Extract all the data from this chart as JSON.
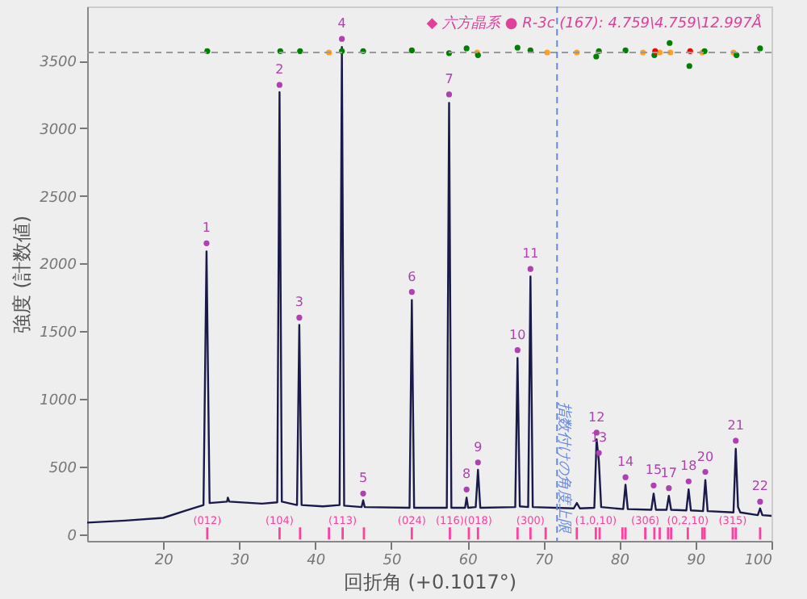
{
  "chart_data": {
    "type": "line",
    "xlabel": "回折角 (+0.1017°)",
    "ylabel": "強度 (計数値)",
    "xlim": [
      10,
      100
    ],
    "xticks": [
      20,
      30,
      40,
      50,
      60,
      70,
      80,
      90,
      100
    ],
    "ylim": [
      -50,
      3900
    ],
    "yticks": [
      0,
      500,
      1000,
      1500,
      2000,
      2500,
      3000,
      3500
    ],
    "grid": false,
    "series": [
      {
        "color": "#1a1a4a",
        "x": [
          10,
          15,
          20,
          23,
          25.3,
          25.7,
          26.1,
          28.4,
          28.5,
          28.7,
          33,
          35.0,
          35.3,
          35.6,
          37.6,
          37.9,
          38.2,
          41,
          43.2,
          43.5,
          43.8,
          46.1,
          46.3,
          46.5,
          52.4,
          52.7,
          53.0,
          57.3,
          57.6,
          57.9,
          59.7,
          59.9,
          60.1,
          61.1,
          61.4,
          61.7,
          66.3,
          66.6,
          66.9,
          68.0,
          68.3,
          68.6,
          74,
          74.4,
          74.8,
          76.7,
          77.0,
          77.3,
          77.6,
          80.5,
          80.8,
          81.1,
          84.2,
          84.5,
          84.8,
          86.2,
          86.5,
          86.8,
          88.8,
          89.1,
          89.4,
          91.0,
          91.3,
          91.6,
          95.0,
          95.3,
          95.6,
          95.9,
          98.2,
          98.5,
          98.8,
          100
        ],
        "values": [
          85,
          100,
          120,
          175,
          215,
          2090,
          230,
          240,
          270,
          240,
          225,
          235,
          3266,
          240,
          215,
          1546,
          215,
          205,
          215,
          3600,
          210,
          200,
          250,
          200,
          195,
          1730,
          195,
          195,
          3187,
          195,
          195,
          270,
          195,
          200,
          475,
          195,
          200,
          1302,
          205,
          200,
          1904,
          200,
          190,
          230,
          190,
          195,
          700,
          540,
          200,
          185,
          365,
          185,
          180,
          300,
          180,
          180,
          283,
          180,
          175,
          330,
          175,
          170,
          400,
          170,
          160,
          630,
          200,
          160,
          140,
          190,
          140,
          135
        ]
      },
      {
        "type": "scatter",
        "marker": "circle",
        "color": "#b040b0",
        "x": [
          25.7,
          35.3,
          37.9,
          43.5,
          46.3,
          52.7,
          57.6,
          59.9,
          61.4,
          66.6,
          68.3,
          77.0,
          77.3,
          80.8,
          84.5,
          86.5,
          89.1,
          91.3,
          95.3,
          98.5
        ],
        "values": [
          2150,
          3320,
          1600,
          3660,
          300,
          1790,
          3250,
          330,
          530,
          1360,
          1960,
          750,
          600,
          420,
          360,
          340,
          390,
          460,
          690,
          240
        ]
      },
      {
        "type": "bar",
        "color": "#ff40a0",
        "x": [
          25.8,
          35.3,
          38.0,
          41.8,
          43.6,
          46.4,
          52.7,
          57.7,
          60.2,
          61.4,
          66.6,
          68.3,
          70.3,
          74.4,
          76.9,
          77.4,
          80.4,
          80.8,
          83.4,
          84.6,
          85.3,
          86.4,
          86.8,
          89.0,
          90.9,
          91.2,
          94.9,
          95.3,
          98.5
        ],
        "base": [
          -40,
          -40,
          -40,
          -40,
          -40,
          -40,
          -40,
          -40,
          -40,
          -40,
          -40,
          -40,
          -40,
          -40,
          -40,
          -40,
          -40,
          -40,
          -40,
          -40,
          -40,
          -40,
          -40,
          -40,
          -40,
          -40,
          -40,
          -40,
          -40
        ],
        "values": [
          90,
          90,
          90,
          90,
          90,
          90,
          90,
          90,
          90,
          90,
          90,
          90,
          90,
          90,
          90,
          90,
          90,
          90,
          90,
          90,
          90,
          90,
          90,
          90,
          90,
          90,
          90,
          90,
          90
        ]
      },
      {
        "type": "scatter",
        "marker": "circle",
        "color": "#ffa020",
        "x": [
          41.8,
          61.3,
          70.5,
          74.4,
          83.1,
          85.3,
          86.7,
          90.9,
          95.0
        ],
        "values": [
          3560,
          3560,
          3560,
          3560,
          3560,
          3560,
          3560,
          3560,
          3560
        ]
      },
      {
        "type": "scatter",
        "marker": "circle",
        "color": "#008000",
        "x": [
          25.8,
          35.4,
          38.0,
          43.5,
          46.3,
          52.7,
          57.6,
          59.9,
          61.4,
          66.6,
          68.3,
          76.95,
          77.3,
          80.8,
          84.6,
          86.6,
          89.2,
          91.2,
          95.4,
          98.5
        ],
        "values": [
          3570,
          3570,
          3570,
          3570,
          3570,
          3575,
          3555,
          3590,
          3540,
          3595,
          3575,
          3530,
          3570,
          3575,
          3540,
          3630,
          3460,
          3570,
          3540,
          3590
        ]
      },
      {
        "type": "scatter",
        "marker": "circle",
        "color": "#ff0000",
        "x": [
          84.7,
          89.3
        ],
        "values": [
          3570,
          3570
        ]
      }
    ],
    "ref_lines": [
      {
        "axis": "y",
        "value": 3560,
        "color": "#999999",
        "line_style": "dashed"
      },
      {
        "axis": "x",
        "value": 71.8,
        "label": "指数付けの角度上限",
        "color": "#6688dd",
        "line_style": "dashed"
      }
    ],
    "annotations": [
      "◆ 六方晶系 ● R-3c (167): 4.759\\4.759\\12.997Å",
      {
        "text": "1",
        "x": 25.7,
        "y": 2150
      },
      {
        "text": "2",
        "x": 35.3,
        "y": 3320
      },
      {
        "text": "3",
        "x": 37.9,
        "y": 1600
      },
      {
        "text": "4",
        "x": 43.5,
        "y": 3660
      },
      {
        "text": "5",
        "x": 46.3,
        "y": 300
      },
      {
        "text": "6",
        "x": 52.7,
        "y": 1790
      },
      {
        "text": "7",
        "x": 57.6,
        "y": 3250
      },
      {
        "text": "8",
        "x": 59.9,
        "y": 330
      },
      {
        "text": "9",
        "x": 61.4,
        "y": 530
      },
      {
        "text": "10",
        "x": 66.6,
        "y": 1360
      },
      {
        "text": "11",
        "x": 68.3,
        "y": 1960
      },
      {
        "text": "12",
        "x": 77.0,
        "y": 750
      },
      {
        "text": "13",
        "x": 77.3,
        "y": 600
      },
      {
        "text": "14",
        "x": 80.8,
        "y": 420
      },
      {
        "text": "15",
        "x": 84.5,
        "y": 360
      },
      {
        "text": "17",
        "x": 86.5,
        "y": 340
      },
      {
        "text": "18",
        "x": 89.1,
        "y": 390
      },
      {
        "text": "20",
        "x": 91.3,
        "y": 460
      },
      {
        "text": "21",
        "x": 95.3,
        "y": 690
      },
      {
        "text": "22",
        "x": 98.5,
        "y": 240
      },
      {
        "text": "(012)",
        "x": 25.8,
        "y": 50
      },
      {
        "text": "(104)",
        "x": 35.3,
        "y": 50
      },
      {
        "text": "(113)",
        "x": 43.6,
        "y": 50
      },
      {
        "text": "(024)",
        "x": 52.7,
        "y": 50
      },
      {
        "text": "(116)",
        "x": 57.7,
        "y": 50
      },
      {
        "text": "(018)",
        "x": 61.4,
        "y": 50
      },
      {
        "text": "(300)",
        "x": 68.3,
        "y": 50
      },
      {
        "text": "(1,0,10)",
        "x": 76.9,
        "y": 50
      },
      {
        "text": "(306)",
        "x": 83.4,
        "y": 50
      },
      {
        "text": "(0,2,10)",
        "x": 89.0,
        "y": 50
      },
      {
        "text": "(315)",
        "x": 94.9,
        "y": 50
      }
    ]
  }
}
